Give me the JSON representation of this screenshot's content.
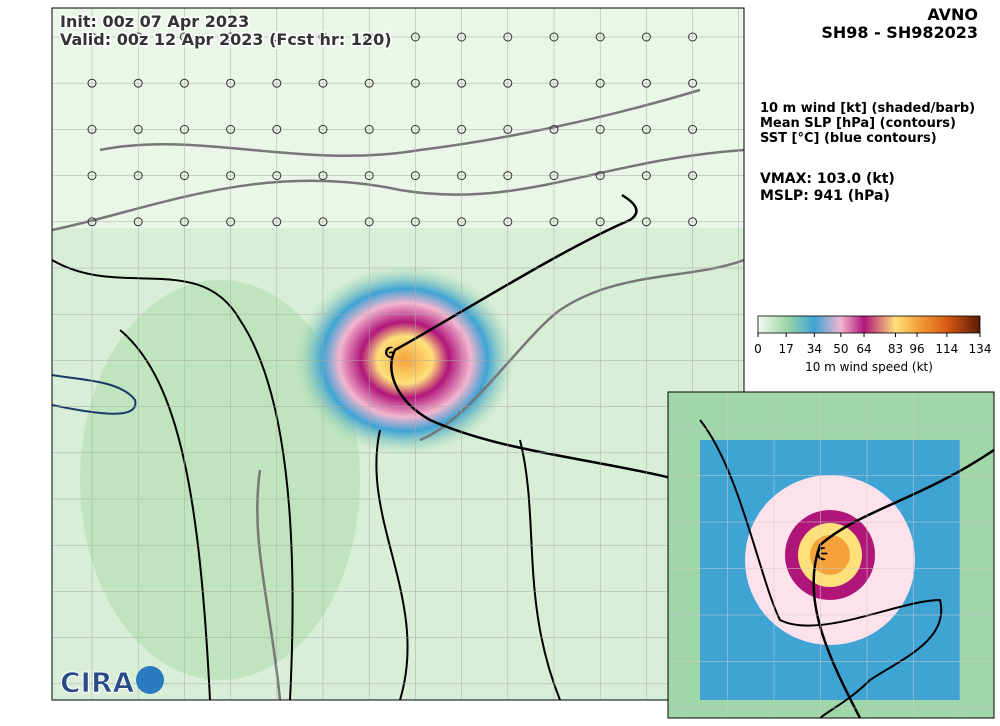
{
  "header": {
    "init": "Init:   00z 07 Apr 2023",
    "valid": "Valid: 00z 12 Apr 2023 (Fcst hr: 120)"
  },
  "model": "AVNO",
  "storm": "SH98 - SH982023",
  "legend_lines": [
    "10 m wind [kt] (shaded/barb)",
    "Mean SLP [hPa] (contours)",
    "SST [°C] (blue contours)"
  ],
  "vmax": "VMAX: 103.0 (kt)",
  "mslp": "MSLP:  941 (hPa)",
  "colorbar": {
    "label": "10 m wind speed (kt)",
    "range": [
      0,
      134
    ],
    "ticks": [
      0,
      17,
      34,
      50,
      64,
      83,
      96,
      114,
      134
    ],
    "colors": [
      "#f4fbf2",
      "#9fd7a8",
      "#3fa3d4",
      "#f3b6cf",
      "#b0167a",
      "#ffe07a",
      "#f5a23a",
      "#d85a12",
      "#5a1a05"
    ]
  },
  "logo": "CIRA"
}
